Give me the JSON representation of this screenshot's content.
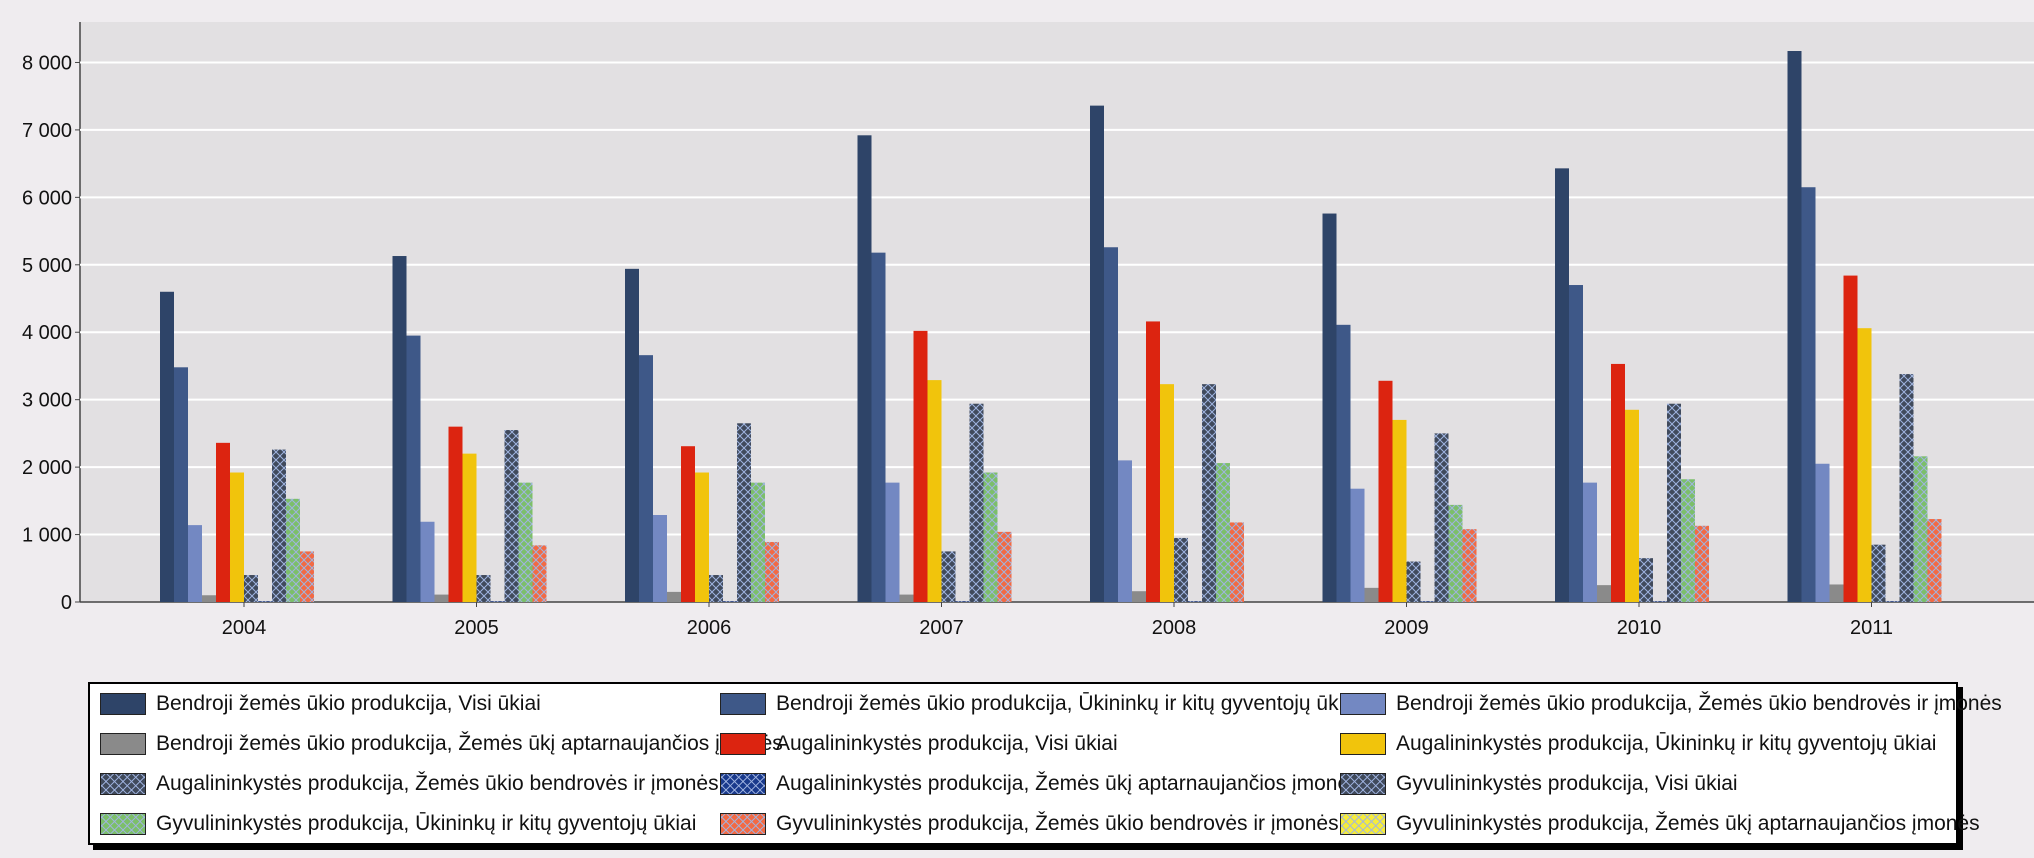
{
  "chart_data": {
    "type": "bar",
    "categories": [
      "2004",
      "2005",
      "2006",
      "2007",
      "2008",
      "2009",
      "2010",
      "2011"
    ],
    "ylim": [
      0,
      8600
    ],
    "yticks": [
      0,
      1000,
      2000,
      3000,
      4000,
      5000,
      6000,
      7000,
      8000
    ],
    "ytick_labels": [
      "0",
      "1 000",
      "2 000",
      "3 000",
      "4 000",
      "5 000",
      "6 000",
      "7 000",
      "8 000"
    ],
    "grid": true,
    "legend_position": "bottom",
    "series": [
      {
        "name": "Bendroji žemės ūkio produkcija, Visi ūkiai",
        "color": "#2e4468",
        "pattern": "solid",
        "values": [
          4600,
          5130,
          4940,
          6920,
          7360,
          5760,
          6430,
          8170
        ]
      },
      {
        "name": "Bendroji žemės ūkio produkcija, Ūkininkų ir kitų gyventojų ūkiai",
        "color": "#3e5888",
        "pattern": "solid",
        "values": [
          3480,
          3950,
          3660,
          5180,
          5260,
          4110,
          4700,
          6150
        ]
      },
      {
        "name": "Bendroji žemės ūkio produkcija, Žemės ūkio bendrovės ir įmonės",
        "color": "#7388c2",
        "pattern": "solid",
        "values": [
          1140,
          1190,
          1290,
          1770,
          2100,
          1680,
          1770,
          2050
        ]
      },
      {
        "name": "Bendroji žemės ūkio produkcija, Žemės ūkį aptarnaujančios įmonės",
        "color": "#8a8a8a",
        "pattern": "solid",
        "values": [
          100,
          110,
          150,
          110,
          160,
          210,
          250,
          260
        ]
      },
      {
        "name": "Augalininkystės produkcija, Visi ūkiai",
        "color": "#dc2410",
        "pattern": "solid",
        "values": [
          2360,
          2600,
          2310,
          4020,
          4160,
          3280,
          3530,
          4840
        ]
      },
      {
        "name": "Augalininkystės produkcija, Ūkininkų ir kitų gyventojų ūkiai",
        "color": "#f1c40c",
        "pattern": "solid",
        "values": [
          1920,
          2200,
          1920,
          3290,
          3230,
          2700,
          2850,
          4060
        ]
      },
      {
        "name": "Augalininkystės produkcija, Žemės ūkio bendrovės ir įmonės",
        "color": "#404a5c",
        "pattern": "cross",
        "values": [
          400,
          400,
          400,
          750,
          950,
          600,
          650,
          850
        ]
      },
      {
        "name": "Augalininkystės produkcija, Žemės ūkį aptarnaujančios įmonės",
        "color": "#1a3a8c",
        "pattern": "cross",
        "values": [
          10,
          10,
          10,
          10,
          10,
          10,
          10,
          10
        ]
      },
      {
        "name": "Gyvulininkystės produkcija, Visi ūkiai",
        "color": "#404a5c",
        "pattern": "cross",
        "values": [
          2260,
          2550,
          2650,
          2940,
          3230,
          2500,
          2940,
          3380
        ]
      },
      {
        "name": "Gyvulininkystės produkcija, Ūkininkų ir kitų gyventojų ūkiai",
        "color": "#7cbf6a",
        "pattern": "cross",
        "values": [
          1530,
          1770,
          1770,
          1920,
          2060,
          1440,
          1820,
          2160
        ]
      },
      {
        "name": "Gyvulininkystės produkcija, Žemės ūkio bendrovės ir įmonės",
        "color": "#f26a44",
        "pattern": "cross",
        "values": [
          750,
          840,
          890,
          1040,
          1180,
          1080,
          1130,
          1230
        ]
      },
      {
        "name": "Gyvulininkystės produkcija, Žemės ūkį aptarnaujančios įmonės",
        "color": "#f6ec3a",
        "pattern": "cross",
        "values": [
          0,
          0,
          0,
          0,
          0,
          0,
          0,
          0
        ]
      }
    ]
  }
}
